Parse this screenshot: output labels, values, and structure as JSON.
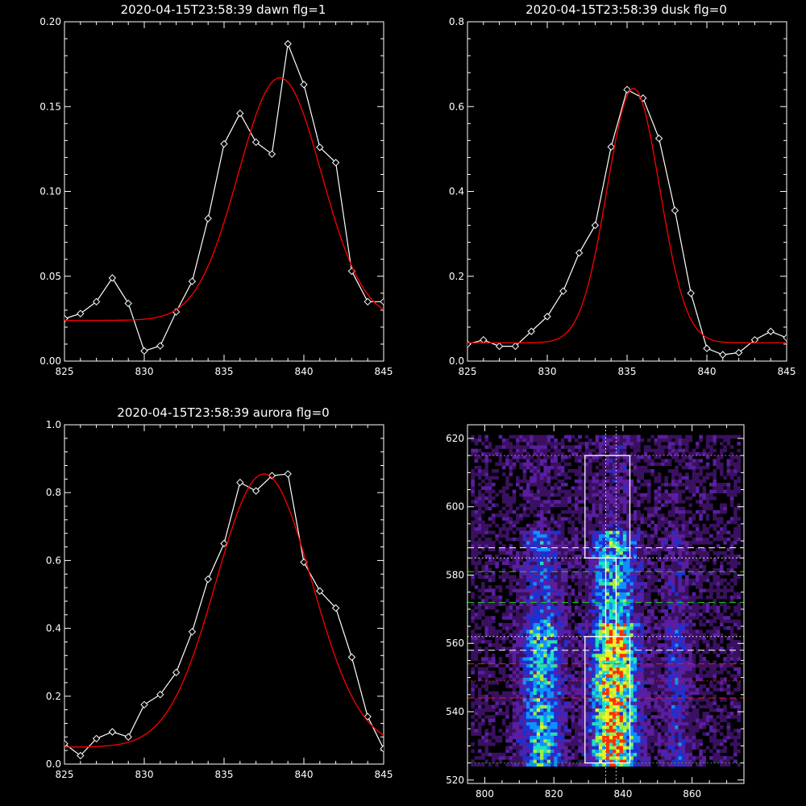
{
  "chart_data": [
    {
      "type": "line",
      "title": "2020-04-15T23:58:39 dawn flg=1",
      "xlim": [
        825,
        845
      ],
      "ylim": [
        0.0,
        0.2
      ],
      "xticks": [
        "825",
        "830",
        "835",
        "840",
        "845"
      ],
      "yticks": [
        "0.00",
        "0.05",
        "0.10",
        "0.15",
        "0.20"
      ],
      "series": [
        {
          "color": "#ffffff",
          "marker": "diamond",
          "x": [
            825,
            826,
            827,
            828,
            829,
            830,
            831,
            832,
            833,
            834,
            835,
            836,
            837,
            838,
            839,
            840,
            841,
            842,
            843,
            844,
            845
          ],
          "y": [
            0.025,
            0.028,
            0.035,
            0.049,
            0.034,
            0.006,
            0.009,
            0.029,
            0.047,
            0.084,
            0.128,
            0.146,
            0.129,
            0.122,
            0.187,
            0.163,
            0.126,
            0.117,
            0.053,
            0.035,
            0.035
          ]
        },
        {
          "color": "#ff0000",
          "fit": "gaussian",
          "amplitude": 0.143,
          "center": 838.5,
          "sigma": 2.6,
          "baseline": 0.024
        }
      ]
    },
    {
      "type": "line",
      "title": "2020-04-15T23:58:39 dusk flg=0",
      "xlim": [
        825,
        845
      ],
      "ylim": [
        0.0,
        0.8
      ],
      "xticks": [
        "825",
        "830",
        "835",
        "840",
        "845"
      ],
      "yticks": [
        "0.0",
        "0.2",
        "0.4",
        "0.6",
        "0.8"
      ],
      "series": [
        {
          "color": "#ffffff",
          "marker": "diamond",
          "x": [
            825,
            826,
            827,
            828,
            829,
            830,
            831,
            832,
            833,
            834,
            835,
            836,
            837,
            838,
            839,
            840,
            841,
            842,
            843,
            844,
            845
          ],
          "y": [
            0.04,
            0.05,
            0.035,
            0.035,
            0.07,
            0.105,
            0.165,
            0.255,
            0.32,
            0.505,
            0.64,
            0.62,
            0.525,
            0.355,
            0.16,
            0.03,
            0.015,
            0.02,
            0.05,
            0.07,
            0.055
          ]
        },
        {
          "color": "#ff0000",
          "fit": "gaussian",
          "amplitude": 0.6,
          "center": 835.4,
          "sigma": 1.65,
          "baseline": 0.043
        }
      ]
    },
    {
      "type": "line",
      "title": "2020-04-15T23:58:39 aurora flg=0",
      "xlim": [
        825,
        845
      ],
      "ylim": [
        0.0,
        1.0
      ],
      "xticks": [
        "825",
        "830",
        "835",
        "840",
        "845"
      ],
      "yticks": [
        "0.0",
        "0.2",
        "0.4",
        "0.6",
        "0.8",
        "1.0"
      ],
      "series": [
        {
          "color": "#ffffff",
          "marker": "diamond",
          "x": [
            825,
            826,
            827,
            828,
            829,
            830,
            831,
            832,
            833,
            834,
            835,
            836,
            837,
            838,
            839,
            840,
            841,
            842,
            843,
            844,
            845
          ],
          "y": [
            0.06,
            0.025,
            0.075,
            0.095,
            0.08,
            0.175,
            0.205,
            0.27,
            0.39,
            0.545,
            0.65,
            0.83,
            0.805,
            0.85,
            0.855,
            0.595,
            0.51,
            0.46,
            0.315,
            0.14,
            0.045
          ]
        },
        {
          "color": "#ff0000",
          "fit": "gaussian",
          "amplitude": 0.805,
          "center": 837.5,
          "sigma": 3.0,
          "baseline": 0.05
        }
      ]
    },
    {
      "type": "heatmap",
      "xlim": [
        795,
        875
      ],
      "ylim": [
        519,
        624
      ],
      "xticks": [
        "800",
        "820",
        "840",
        "860"
      ],
      "yticks": [
        "520",
        "540",
        "560",
        "580",
        "600",
        "620"
      ],
      "colormap": [
        "#000000",
        "#3a1060",
        "#5a1ea0",
        "#2030d0",
        "#1090ff",
        "#20e0c0",
        "#a0f040",
        "#f0f020",
        "#ff3000"
      ],
      "emission_columns": [
        {
          "center": 816,
          "width": 7,
          "intensity": 0.55
        },
        {
          "center": 837,
          "width": 8,
          "intensity": 0.9
        },
        {
          "center": 855,
          "width": 5,
          "intensity": 0.25
        }
      ],
      "boxes": [
        {
          "x": [
            829,
            842
          ],
          "y": [
            525,
            562
          ],
          "color": "#ffffff"
        },
        {
          "x": [
            829,
            842
          ],
          "y": [
            585,
            615
          ],
          "color": "#ffffff"
        },
        {
          "x": [
            835,
            838
          ],
          "y": [
            562,
            585
          ],
          "color": "#ffffff"
        }
      ],
      "horizontal_lines": [
        {
          "y": 615,
          "color": "#ff60ff",
          "style": "dotted"
        },
        {
          "y": 588,
          "color": "#ffffff",
          "style": "dashed"
        },
        {
          "y": 585,
          "color": "#ffffff",
          "style": "dotted"
        },
        {
          "y": 581,
          "color": "#20d020",
          "style": "dashed"
        },
        {
          "y": 572,
          "color": "#20d020",
          "style": "dashed"
        },
        {
          "y": 562,
          "color": "#ffffff",
          "style": "dotted"
        },
        {
          "y": 558,
          "color": "#ffffff",
          "style": "dashed"
        },
        {
          "y": 554,
          "color": "#e02020",
          "style": "dashed"
        },
        {
          "y": 549,
          "color": "#e02020",
          "style": "dotted"
        },
        {
          "y": 544,
          "color": "#e02020",
          "style": "dashed"
        },
        {
          "y": 525,
          "color": "#20d020",
          "style": "dotted"
        }
      ],
      "vertical_lines": [
        {
          "x": 835,
          "color": "#ffffff",
          "style": "dotted"
        },
        {
          "x": 838,
          "color": "#ffffff",
          "style": "dotted"
        }
      ]
    }
  ]
}
